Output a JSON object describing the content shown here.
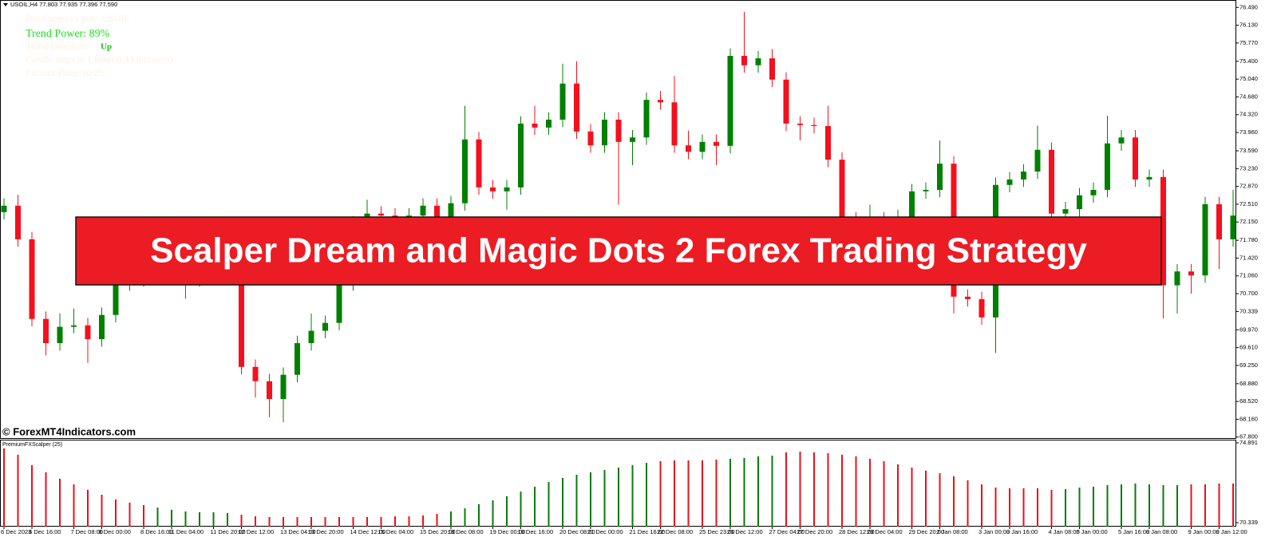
{
  "chart_data": [
    {
      "type": "candlestick",
      "title": "USOIL,H4  77.803 77.935 77.396 77.590",
      "annotations": [
        "Pair/Currency pair: USOIL",
        "Trend Power: 89%",
        "Trend Direction:",
        "Up",
        "Candle stops in 1 hour(s) 43 minute(s)",
        "Current Time: 10:25"
      ],
      "banner": "Scalper Dream and Magic Dots 2 Forex Trading Strategy",
      "watermark": "© ForexMT4Indicators.com",
      "up_color": "#008000",
      "down_color": "#f5101d",
      "categories": [
        "6 Dec 2023",
        null,
        "6 Dec 16:00",
        null,
        null,
        "7 Dec 08:00",
        null,
        "8 Dec 00:00",
        null,
        null,
        "8 Dec 16:00",
        null,
        "11 Dec 04:00",
        null,
        null,
        "11 Dec 20:00",
        null,
        "12 Dec 12:00",
        null,
        null,
        "13 Dec 04:00",
        null,
        "13 Dec 20:00",
        null,
        null,
        "14 Dec 12:00",
        null,
        "15 Dec 04:00",
        null,
        null,
        "15 Dec 20:00",
        null,
        "18 Dec 08:00",
        null,
        null,
        "19 Dec 00:00",
        null,
        "19 Dec 16:00",
        null,
        null,
        "20 Dec 08:00",
        null,
        "21 Dec 00:00",
        null,
        null,
        "21 Dec 16:00",
        null,
        "22 Dec 08:00",
        null,
        null,
        "25 Dec 23:00",
        null,
        "26 Dec 12:00",
        null,
        null,
        "27 Dec 04:00",
        null,
        "27 Dec 20:00",
        null,
        null,
        "28 Dec 12:00",
        null,
        "29 Dec 04:00",
        null,
        null,
        "29 Dec 20:00",
        null,
        "2 Jan 08:00",
        null,
        null,
        "3 Jan 00:00",
        null,
        "3 Jan 16:00",
        null,
        null,
        "4 Jan 08:00",
        null,
        "5 Jan 00:00",
        null,
        null,
        "5 Jan 16:00",
        null,
        "8 Jan 08:00",
        null,
        null,
        "9 Jan 00:00",
        null,
        "9 Jan 12:00",
        null
      ],
      "open": [
        72.35,
        72.48,
        71.8,
        70.19,
        69.7,
        70.03,
        70.06,
        69.78,
        70.27,
        70.91,
        70.99,
        71.07,
        71.15,
        71.07,
        70.99,
        71.07,
        71.15,
        71.48,
        69.22,
        68.93,
        68.57,
        69.06,
        69.7,
        69.95,
        70.11,
        70.91,
        72.12,
        72.32,
        72.28,
        72.25,
        72.28,
        72.48,
        72.2,
        72.53,
        73.82,
        72.85,
        72.77,
        72.85,
        74.14,
        74.06,
        74.22,
        74.95,
        73.98,
        73.7,
        74.22,
        73.77,
        73.86,
        74.62,
        74.57,
        73.7,
        73.57,
        73.77,
        73.69,
        75.51,
        75.32,
        75.46,
        75.03,
        74.14,
        74.11,
        74.09,
        73.41,
        72.2,
        72.12,
        72.2,
        71.96,
        72.12,
        72.77,
        72.8,
        73.33,
        70.64,
        70.59,
        70.22,
        72.9,
        73.01,
        73.17,
        73.61,
        72.32,
        72.41,
        72.69,
        72.8,
        73.74,
        73.86,
        73.01,
        73.06,
        70.87,
        71.15,
        71.07,
        72.51,
        71.8
      ],
      "high": [
        72.63,
        72.7,
        71.95,
        70.34,
        70.3,
        70.4,
        70.21,
        70.42,
        71.06,
        71.14,
        71.22,
        71.3,
        71.3,
        71.22,
        71.22,
        71.3,
        71.63,
        71.63,
        69.37,
        69.08,
        69.21,
        69.85,
        70.3,
        70.26,
        71.06,
        72.27,
        72.6,
        72.47,
        72.43,
        72.43,
        72.63,
        72.63,
        72.68,
        74.5,
        73.97,
        73.0,
        73.0,
        74.29,
        74.5,
        74.37,
        75.35,
        75.4,
        74.13,
        74.37,
        74.37,
        74.01,
        74.77,
        74.8,
        75.1,
        74.0,
        73.92,
        73.92,
        75.66,
        76.4,
        75.61,
        75.65,
        75.18,
        74.29,
        74.26,
        74.5,
        73.56,
        72.35,
        72.5,
        72.35,
        72.4,
        72.92,
        72.95,
        73.8,
        73.48,
        70.79,
        70.74,
        73.05,
        73.16,
        73.32,
        74.1,
        73.76,
        72.56,
        72.84,
        72.95,
        74.3,
        74.01,
        74.01,
        73.21,
        73.21,
        71.3,
        71.3,
        72.66,
        72.66,
        72.8
      ],
      "low": [
        72.2,
        71.65,
        70.04,
        69.45,
        69.55,
        69.9,
        69.3,
        69.63,
        70.12,
        70.76,
        70.84,
        70.92,
        70.92,
        70.6,
        70.84,
        70.92,
        71.0,
        69.07,
        68.6,
        68.2,
        68.1,
        68.91,
        69.55,
        69.8,
        69.96,
        70.76,
        71.97,
        72.13,
        71.9,
        72.1,
        72.13,
        72.05,
        72.05,
        72.38,
        72.7,
        72.62,
        72.4,
        72.7,
        73.91,
        73.91,
        74.07,
        73.83,
        73.55,
        73.55,
        72.5,
        73.3,
        73.71,
        74.42,
        73.55,
        73.42,
        73.42,
        73.3,
        73.54,
        75.17,
        75.17,
        74.88,
        73.99,
        73.8,
        73.94,
        73.26,
        72.05,
        71.97,
        71.97,
        71.81,
        71.81,
        71.97,
        72.62,
        72.65,
        70.3,
        70.44,
        70.07,
        69.5,
        72.75,
        72.86,
        73.02,
        72.17,
        72.17,
        72.26,
        72.54,
        72.65,
        73.59,
        72.86,
        72.86,
        70.2,
        70.3,
        70.7,
        70.92,
        71.2,
        71.65
      ],
      "close": [
        72.48,
        71.8,
        70.19,
        69.7,
        70.03,
        70.06,
        69.78,
        70.27,
        70.91,
        70.99,
        71.07,
        71.15,
        71.07,
        70.99,
        71.07,
        71.15,
        71.48,
        69.22,
        68.93,
        68.57,
        69.06,
        69.7,
        69.95,
        70.11,
        70.91,
        72.12,
        72.32,
        72.28,
        72.25,
        72.28,
        72.48,
        72.2,
        72.53,
        73.82,
        72.85,
        72.77,
        72.85,
        74.14,
        74.06,
        74.22,
        74.95,
        73.98,
        73.7,
        74.22,
        73.77,
        73.86,
        74.62,
        74.57,
        73.7,
        73.57,
        73.77,
        73.69,
        75.51,
        75.32,
        75.46,
        75.03,
        74.14,
        74.11,
        74.09,
        73.41,
        72.2,
        72.12,
        72.2,
        71.96,
        72.12,
        72.77,
        72.8,
        73.33,
        70.64,
        70.59,
        70.22,
        72.9,
        73.01,
        73.17,
        73.61,
        72.32,
        72.41,
        72.69,
        72.8,
        73.74,
        73.86,
        73.01,
        73.06,
        70.87,
        71.15,
        71.07,
        72.51,
        71.8,
        72.28
      ],
      "ylim": [
        67.78,
        76.64
      ],
      "yticks": [
        {
          "value": 76.49,
          "label": "76.490"
        },
        {
          "value": 76.13,
          "label": "76.130"
        },
        {
          "value": 75.77,
          "label": "75.770"
        },
        {
          "value": 75.4,
          "label": "75.400"
        },
        {
          "value": 75.04,
          "label": "75.040"
        },
        {
          "value": 74.68,
          "label": "74.680"
        },
        {
          "value": 74.32,
          "label": "74.320"
        },
        {
          "value": 73.96,
          "label": "73.960"
        },
        {
          "value": 73.59,
          "label": "73.590"
        },
        {
          "value": 73.23,
          "label": "73.230"
        },
        {
          "value": 72.87,
          "label": "72.870"
        },
        {
          "value": 72.51,
          "label": "72.510"
        },
        {
          "value": 72.15,
          "label": "72.150"
        },
        {
          "value": 71.78,
          "label": "71.780"
        },
        {
          "value": 71.42,
          "label": "71.420"
        },
        {
          "value": 71.06,
          "label": "71.060"
        },
        {
          "value": 70.7,
          "label": "70.700"
        },
        70.339,
        {
          "value": 69.97,
          "label": "69.970"
        },
        {
          "value": 69.61,
          "label": "69.610"
        },
        {
          "value": 69.25,
          "label": "69.250"
        },
        {
          "value": 68.88,
          "label": "68.880"
        },
        {
          "value": 68.52,
          "label": "68.520"
        },
        {
          "value": 68.16,
          "label": "68.160"
        },
        {
          "value": 67.8,
          "label": "67.800"
        }
      ]
    },
    {
      "type": "bar",
      "title": "PremiumFXScalper (25)",
      "values": [
        74.57,
        74.21,
        73.62,
        73.21,
        72.84,
        72.52,
        72.21,
        71.93,
        71.66,
        71.48,
        71.34,
        71.2,
        71.07,
        70.98,
        70.93,
        70.93,
        70.89,
        70.79,
        70.7,
        70.66,
        70.66,
        70.66,
        70.66,
        70.66,
        70.66,
        70.66,
        70.66,
        70.66,
        70.7,
        70.7,
        70.75,
        70.84,
        70.98,
        71.16,
        71.39,
        71.61,
        71.84,
        72.11,
        72.39,
        72.66,
        72.89,
        73.07,
        73.21,
        73.34,
        73.48,
        73.62,
        73.75,
        73.84,
        73.89,
        73.89,
        73.89,
        73.94,
        73.98,
        74.03,
        74.12,
        74.16,
        74.35,
        74.39,
        74.35,
        74.3,
        74.21,
        74.12,
        73.98,
        73.84,
        73.66,
        73.48,
        73.3,
        73.16,
        72.98,
        72.75,
        72.52,
        72.34,
        72.3,
        72.3,
        72.3,
        72.21,
        72.25,
        72.34,
        72.39,
        72.48,
        72.52,
        72.57,
        72.52,
        72.48,
        72.48,
        72.52,
        72.52,
        72.57,
        72.57
      ],
      "colors": [
        "#e8101c",
        "#e8101c",
        "#e8101c",
        "#e8101c",
        "#e8101c",
        "#e8101c",
        "#e8101c",
        "#e8101c",
        "#e8101c",
        "#e8101c",
        "#e8101c",
        "#0a7a0a",
        "#0a7a0a",
        "#0a7a0a",
        "#0a7a0a",
        "#0a7a0a",
        "#0a7a0a",
        "#e8101c",
        "#e8101c",
        "#e8101c",
        "#e8101c",
        "#e8101c",
        "#e8101c",
        "#e8101c",
        "#e8101c",
        "#e8101c",
        "#e8101c",
        "#e8101c",
        "#e8101c",
        "#e8101c",
        "#e8101c",
        "#e8101c",
        "#0a7a0a",
        "#0a7a0a",
        "#0a7a0a",
        "#0a7a0a",
        "#0a7a0a",
        "#0a7a0a",
        "#0a7a0a",
        "#0a7a0a",
        "#0a7a0a",
        "#0a7a0a",
        "#0a7a0a",
        "#0a7a0a",
        "#0a7a0a",
        "#0a7a0a",
        "#0a7a0a",
        "#e8101c",
        "#e8101c",
        "#e8101c",
        "#e8101c",
        "#e8101c",
        "#0a7a0a",
        "#0a7a0a",
        "#0a7a0a",
        "#0a7a0a",
        "#e8101c",
        "#e8101c",
        "#e8101c",
        "#e8101c",
        "#e8101c",
        "#e8101c",
        "#e8101c",
        "#e8101c",
        "#e8101c",
        "#e8101c",
        "#e8101c",
        "#e8101c",
        "#e8101c",
        "#e8101c",
        "#e8101c",
        "#e8101c",
        "#e8101c",
        "#e8101c",
        "#e8101c",
        "#e8101c",
        "#0a7a0a",
        "#0a7a0a",
        "#0a7a0a",
        "#0a7a0a",
        "#0a7a0a",
        "#0a7a0a",
        "#0a7a0a",
        "#0a7a0a",
        "#0a7a0a",
        "#e8101c",
        "#e8101c",
        "#e8101c",
        "#e8101c"
      ],
      "ylim": [
        70.11,
        75.07
      ],
      "yticks": [
        74.891,
        70.339
      ]
    }
  ]
}
